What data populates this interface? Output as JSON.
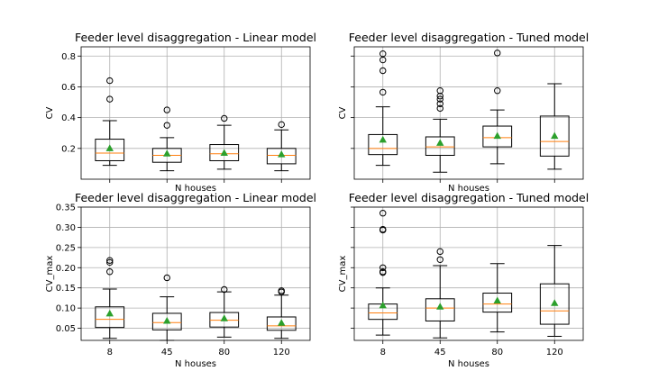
{
  "colors": {
    "median": "#ff7f0e",
    "mean": "#2ca02c",
    "box": "#000000",
    "grid": "#b0b0b0"
  },
  "chart_data": [
    {
      "type": "box",
      "title": "Feeder level disaggregation - Linear model",
      "xlabel": "N houses",
      "ylabel": "CV",
      "categories": [
        "8",
        "45",
        "80",
        "120"
      ],
      "show_xticklabels": false,
      "show_yticklabels": true,
      "ylim": [
        0.0,
        0.86
      ],
      "yticks": [
        0.2,
        0.4,
        0.6,
        0.8
      ],
      "ytick_labels": [
        "0.2",
        "0.4",
        "0.6",
        "0.8"
      ],
      "grid": true,
      "boxes": [
        {
          "q1": 0.12,
          "median": 0.17,
          "q3": 0.26,
          "whislo": 0.09,
          "whishi": 0.38,
          "mean": 0.2,
          "fliers": [
            0.52,
            0.64
          ]
        },
        {
          "q1": 0.11,
          "median": 0.155,
          "q3": 0.2,
          "whislo": 0.055,
          "whishi": 0.27,
          "mean": 0.165,
          "fliers": [
            0.35,
            0.45
          ]
        },
        {
          "q1": 0.12,
          "median": 0.165,
          "q3": 0.225,
          "whislo": 0.065,
          "whishi": 0.35,
          "mean": 0.17,
          "fliers": [
            0.395
          ]
        },
        {
          "q1": 0.1,
          "median": 0.155,
          "q3": 0.2,
          "whislo": 0.055,
          "whishi": 0.32,
          "mean": 0.16,
          "fliers": [
            0.355
          ]
        }
      ]
    },
    {
      "type": "box",
      "title": "Feeder level disaggregation - Tuned model",
      "xlabel": "N houses",
      "ylabel": "CV",
      "categories": [
        "8",
        "45",
        "80",
        "120"
      ],
      "show_xticklabels": false,
      "show_yticklabels": false,
      "ylim": [
        0.0,
        0.86
      ],
      "yticks": [
        0.2,
        0.4,
        0.6,
        0.8
      ],
      "ytick_labels": [
        "",
        "",
        "",
        ""
      ],
      "grid": true,
      "boxes": [
        {
          "q1": 0.16,
          "median": 0.2,
          "q3": 0.29,
          "whislo": 0.09,
          "whishi": 0.47,
          "mean": 0.255,
          "fliers": [
            0.565,
            0.705,
            0.775,
            0.815
          ]
        },
        {
          "q1": 0.155,
          "median": 0.21,
          "q3": 0.275,
          "whislo": 0.045,
          "whishi": 0.39,
          "mean": 0.235,
          "fliers": [
            0.46,
            0.49,
            0.52,
            0.54,
            0.575
          ]
        },
        {
          "q1": 0.21,
          "median": 0.27,
          "q3": 0.345,
          "whislo": 0.1,
          "whishi": 0.45,
          "mean": 0.28,
          "fliers": [
            0.575,
            0.82
          ]
        },
        {
          "q1": 0.15,
          "median": 0.245,
          "q3": 0.41,
          "whislo": 0.065,
          "whishi": 0.62,
          "mean": 0.28,
          "fliers": []
        }
      ]
    },
    {
      "type": "box",
      "title": "Feeder level disaggregation - Linear model",
      "xlabel": "N houses",
      "ylabel": "CV_max",
      "categories": [
        "8",
        "45",
        "80",
        "120"
      ],
      "show_xticklabels": true,
      "show_yticklabels": true,
      "ylim": [
        0.02,
        0.35
      ],
      "yticks": [
        0.05,
        0.1,
        0.15,
        0.2,
        0.25,
        0.3,
        0.35
      ],
      "ytick_labels": [
        "0.05",
        "0.10",
        "0.15",
        "0.20",
        "0.25",
        "0.30",
        "0.35"
      ],
      "grid": true,
      "boxes": [
        {
          "q1": 0.052,
          "median": 0.072,
          "q3": 0.103,
          "whislo": 0.025,
          "whishi": 0.147,
          "mean": 0.086,
          "fliers": [
            0.19,
            0.213,
            0.218
          ]
        },
        {
          "q1": 0.046,
          "median": 0.064,
          "q3": 0.087,
          "whislo": 0.02,
          "whishi": 0.128,
          "mean": 0.068,
          "fliers": [
            0.175
          ]
        },
        {
          "q1": 0.053,
          "median": 0.07,
          "q3": 0.089,
          "whislo": 0.028,
          "whishi": 0.14,
          "mean": 0.074,
          "fliers": [
            0.146
          ]
        },
        {
          "q1": 0.045,
          "median": 0.056,
          "q3": 0.078,
          "whislo": 0.025,
          "whishi": 0.132,
          "mean": 0.063,
          "fliers": [
            0.14,
            0.143
          ]
        }
      ]
    },
    {
      "type": "box",
      "title": "Feeder level disaggregation - Tuned model",
      "xlabel": "N houses",
      "ylabel": "CV_max",
      "categories": [
        "8",
        "45",
        "80",
        "120"
      ],
      "show_xticklabels": true,
      "show_yticklabels": false,
      "ylim": [
        0.02,
        0.35
      ],
      "yticks": [
        0.05,
        0.1,
        0.15,
        0.2,
        0.25,
        0.3,
        0.35
      ],
      "ytick_labels": [
        "",
        "",
        "",
        "",
        "",
        "",
        ""
      ],
      "grid": true,
      "boxes": [
        {
          "q1": 0.072,
          "median": 0.088,
          "q3": 0.11,
          "whislo": 0.033,
          "whishi": 0.15,
          "mean": 0.106,
          "fliers": [
            0.188,
            0.19,
            0.2,
            0.293,
            0.295,
            0.335
          ]
        },
        {
          "q1": 0.068,
          "median": 0.1,
          "q3": 0.123,
          "whislo": 0.026,
          "whishi": 0.205,
          "mean": 0.103,
          "fliers": [
            0.22,
            0.24
          ]
        },
        {
          "q1": 0.09,
          "median": 0.11,
          "q3": 0.137,
          "whislo": 0.041,
          "whishi": 0.21,
          "mean": 0.118,
          "fliers": []
        },
        {
          "q1": 0.06,
          "median": 0.093,
          "q3": 0.16,
          "whislo": 0.03,
          "whishi": 0.255,
          "mean": 0.112,
          "fliers": []
        }
      ]
    }
  ]
}
